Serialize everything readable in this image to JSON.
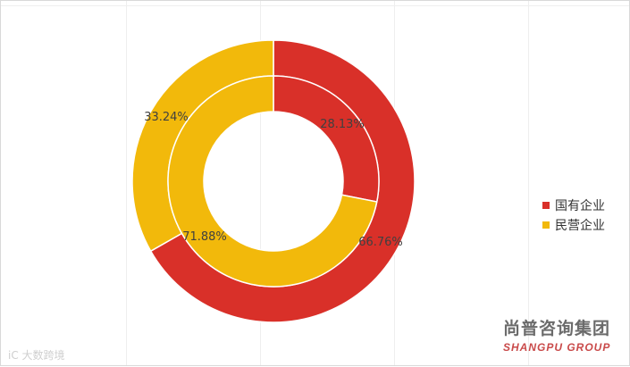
{
  "chart_data": {
    "type": "pie",
    "subtype": "nested-donut",
    "legend_placement": "right",
    "legend": [
      {
        "name": "国有企业",
        "color": "#d93029"
      },
      {
        "name": "民营企业",
        "color": "#f2b90b"
      }
    ],
    "rings": [
      {
        "ring": "outer",
        "slices": [
          {
            "category": "国有企业",
            "value": 66.76,
            "label": "66.76%"
          },
          {
            "category": "民营企业",
            "value": 33.24,
            "label": "33.24%"
          }
        ]
      },
      {
        "ring": "inner",
        "slices": [
          {
            "category": "国有企业",
            "value": 28.13,
            "label": "28.13%"
          },
          {
            "category": "民营企业",
            "value": 71.88,
            "label": "71.88%"
          }
        ]
      }
    ]
  },
  "branding": {
    "company_cn": "尚普咨询集团",
    "company_en": "SHANGPU GROUP"
  },
  "watermark": {
    "text": "iC 大数跨境"
  }
}
